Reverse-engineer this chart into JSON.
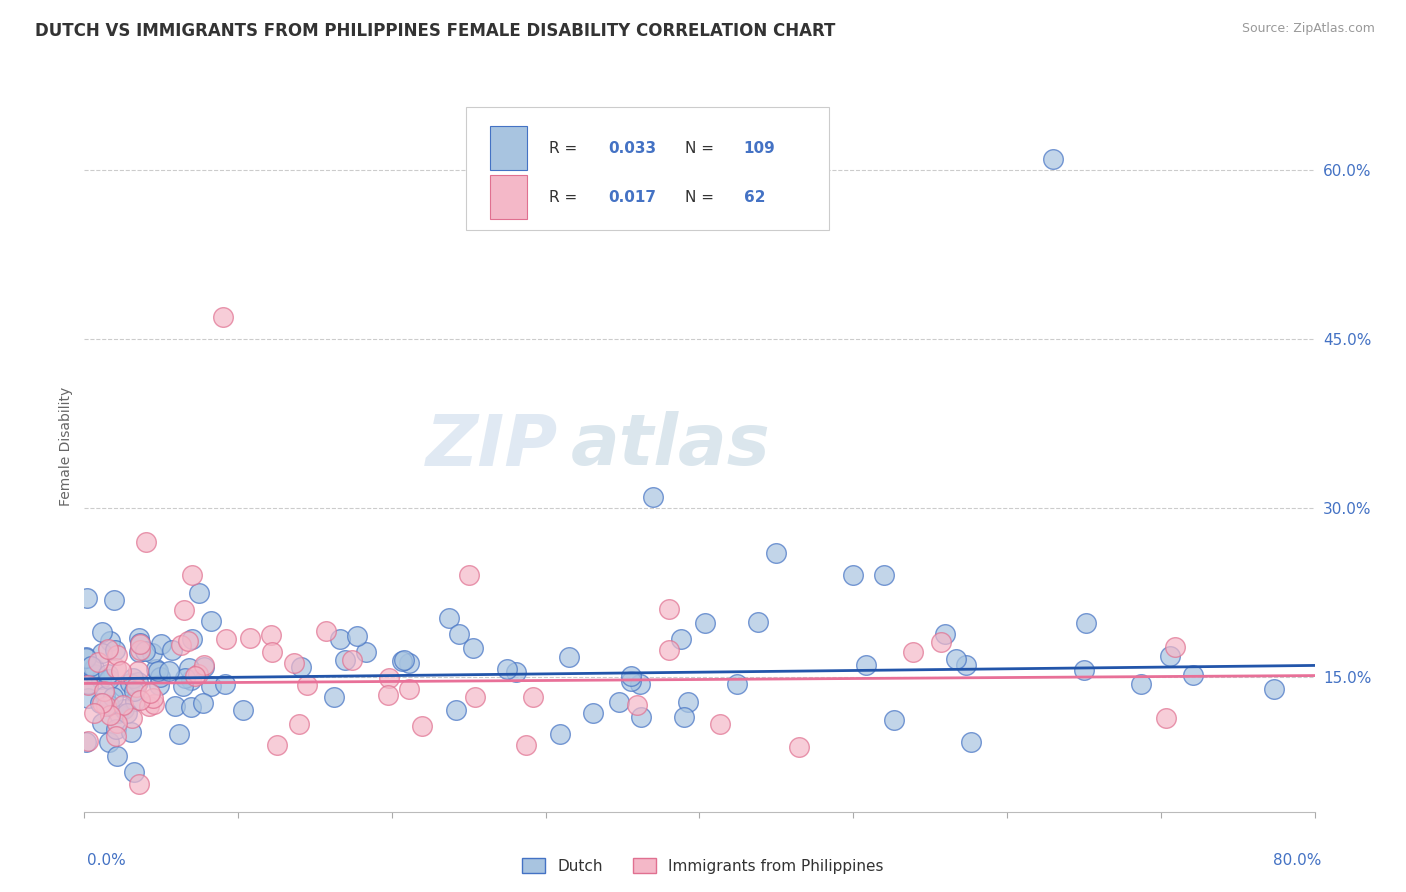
{
  "title": "DUTCH VS IMMIGRANTS FROM PHILIPPINES FEMALE DISABILITY CORRELATION CHART",
  "source": "Source: ZipAtlas.com",
  "ylabel": "Female Disability",
  "ylabel_right_ticks": [
    0.15,
    0.3,
    0.45,
    0.6
  ],
  "ylabel_right_labels": [
    "15.0%",
    "30.0%",
    "45.0%",
    "60.0%"
  ],
  "xmin": 0.0,
  "xmax": 0.8,
  "ymin": 0.03,
  "ymax": 0.68,
  "dutch_fill_color": "#a8c4e0",
  "dutch_edge_color": "#4472c4",
  "phil_fill_color": "#f4b8c8",
  "phil_edge_color": "#e07090",
  "dutch_line_color": "#2255aa",
  "phil_line_color": "#e87098",
  "dutch_R": 0.033,
  "dutch_N": 109,
  "philippines_R": 0.017,
  "philippines_N": 62,
  "legend_dutch_label": "Dutch",
  "legend_philippines_label": "Immigrants from Philippines",
  "dutch_line_x": [
    0.0,
    0.8
  ],
  "dutch_line_y": [
    0.148,
    0.16
  ],
  "phil_line_x": [
    0.0,
    0.8
  ],
  "phil_line_y": [
    0.144,
    0.151
  ],
  "background_color": "#ffffff",
  "grid_color": "#cccccc",
  "title_color": "#333333",
  "source_color": "#999999",
  "label_color": "#4472c4",
  "text_color": "#333333"
}
